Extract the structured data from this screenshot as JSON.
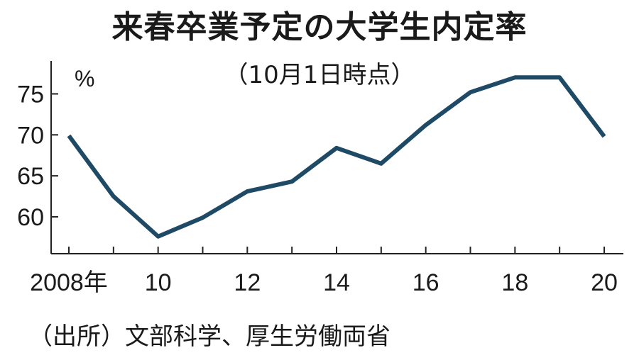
{
  "chart_data": {
    "type": "line",
    "title": "来春卒業予定の大学生内定率",
    "subtitle": "（10月1日時点）",
    "unit": "%",
    "source": "（出所）文部科学、厚生労働両省",
    "x": [
      2008,
      2009,
      2010,
      2011,
      2012,
      2013,
      2014,
      2015,
      2016,
      2017,
      2018,
      2019,
      2020
    ],
    "series": [
      {
        "values": [
          69.9,
          62.5,
          57.6,
          59.9,
          63.1,
          64.3,
          68.4,
          66.5,
          71.2,
          75.2,
          77.0,
          77.0,
          69.8
        ]
      }
    ],
    "xtick_labels": [
      {
        "x": 2008,
        "label": "2008年"
      },
      {
        "x": 2010,
        "label": "10"
      },
      {
        "x": 2012,
        "label": "12"
      },
      {
        "x": 2014,
        "label": "14"
      },
      {
        "x": 2016,
        "label": "16"
      },
      {
        "x": 2018,
        "label": "18"
      },
      {
        "x": 2020,
        "label": "20"
      }
    ],
    "yticks": [
      60,
      65,
      70,
      75
    ],
    "ylim": [
      55.5,
      78.5
    ],
    "grid": false,
    "line_color": "#1f4a66"
  }
}
